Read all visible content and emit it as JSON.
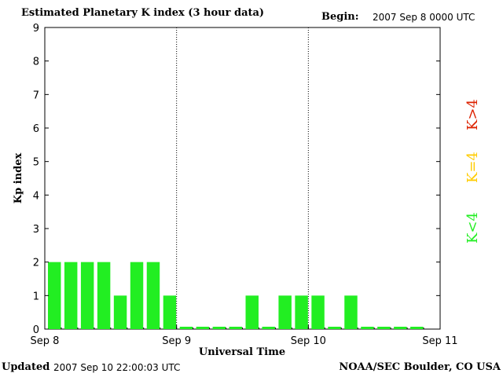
{
  "header": {
    "title": "Estimated Planetary K index (3 hour data)",
    "begin_label": "Begin:",
    "begin_value": "2007 Sep 8 0000 UTC"
  },
  "footer": {
    "updated_label": "Updated",
    "updated_value": "2007 Sep 10 22:00:03 UTC",
    "credit": "NOAA/SEC Boulder, CO USA"
  },
  "side_legend": [
    {
      "label": "K<4",
      "color": "#22ee22"
    },
    {
      "label": "K=4",
      "color": "#ffcc00"
    },
    {
      "label": "K>4",
      "color": "#dd2200"
    }
  ],
  "chart_data": {
    "type": "bar",
    "title": "Estimated Planetary K index (3 hour data)",
    "xlabel": "Universal Time",
    "ylabel": "Kp index",
    "ylim": [
      0,
      9
    ],
    "yticks": [
      "0",
      "1",
      "2",
      "3",
      "4",
      "5",
      "6",
      "7",
      "8",
      "9"
    ],
    "xticks": [
      "Sep 8",
      "Sep 9",
      "Sep 10",
      "Sep 11"
    ],
    "interval_hours": 3,
    "bar_color": "#22ee22",
    "values": [
      2,
      2,
      2,
      2,
      1,
      2,
      2,
      1,
      0,
      0,
      0,
      0,
      1,
      0,
      1,
      1,
      1,
      0,
      1,
      0,
      0,
      0,
      0
    ]
  }
}
